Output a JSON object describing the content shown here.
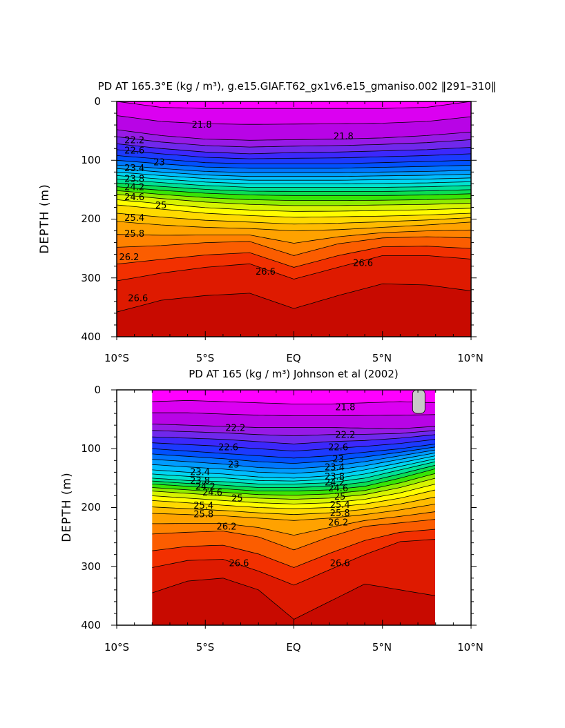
{
  "chart_data": [
    {
      "type": "contour",
      "title": "PD AT 165.3°E (kg / m³), g.e15.GIAF.T62_gx1v6.e15_gmaniso.002 ‖291–310‖",
      "ylabel": "DEPTH (m)",
      "xlabel": "",
      "xticks": [
        "10°S",
        "5°S",
        "EQ",
        "5°N",
        "10°N"
      ],
      "xlim": [
        -10,
        10
      ],
      "ylim": [
        400,
        0
      ],
      "yticks": [
        "0",
        "100",
        "200",
        "300",
        "400"
      ],
      "data_extent": [
        -10,
        10
      ],
      "contour_levels": [
        21.8,
        22.0,
        22.2,
        22.4,
        22.6,
        22.8,
        23.0,
        23.2,
        23.4,
        23.6,
        23.8,
        24.0,
        24.2,
        24.4,
        24.6,
        24.8,
        25.0,
        25.2,
        25.4,
        25.6,
        25.8,
        26.0,
        26.2,
        26.4,
        26.6,
        26.8
      ],
      "isopycnal_depths": [
        {
          "level": 21.8,
          "lat": [
            -10,
            -7.5,
            -5,
            -2.5,
            0,
            2.5,
            5,
            7.5,
            10
          ],
          "depth": [
            0,
            10,
            12,
            12,
            12,
            12,
            12,
            10,
            0
          ]
        },
        {
          "level": 22.2,
          "lat": [
            -10,
            -7.5,
            -5,
            -2.5,
            0,
            2.5,
            5,
            7.5,
            10
          ],
          "depth": [
            48,
            58,
            64,
            66,
            65,
            64,
            62,
            58,
            52
          ]
        },
        {
          "level": 22.6,
          "lat": [
            -10,
            -7.5,
            -5,
            -2.5,
            0,
            2.5,
            5,
            7.5,
            10
          ],
          "depth": [
            72,
            80,
            86,
            89,
            87,
            86,
            84,
            82,
            78
          ]
        },
        {
          "level": 23.0,
          "lat": [
            -10,
            -7.5,
            -5,
            -2.5,
            0,
            2.5,
            5,
            7.5,
            10
          ],
          "depth": [
            92,
            98,
            104,
            106,
            106,
            106,
            104,
            102,
            100
          ]
        },
        {
          "level": 23.4,
          "lat": [
            -10,
            -7.5,
            -5,
            -2.5,
            0,
            2.5,
            5,
            7.5,
            10
          ],
          "depth": [
            108,
            114,
            119,
            121,
            121,
            121,
            120,
            119,
            117
          ]
        },
        {
          "level": 23.8,
          "lat": [
            -10,
            -7.5,
            -5,
            -2.5,
            0,
            2.5,
            5,
            7.5,
            10
          ],
          "depth": [
            120,
            126,
            131,
            134,
            134,
            134,
            133,
            132,
            130
          ]
        },
        {
          "level": 24.2,
          "lat": [
            -10,
            -7.5,
            -5,
            -2.5,
            0,
            2.5,
            5,
            7.5,
            10
          ],
          "depth": [
            132,
            138,
            143,
            146,
            146,
            146,
            146,
            145,
            143
          ]
        },
        {
          "level": 24.6,
          "lat": [
            -10,
            -7.5,
            -5,
            -2.5,
            0,
            2.5,
            5,
            7.5,
            10
          ],
          "depth": [
            145,
            151,
            156,
            159,
            160,
            160,
            160,
            159,
            157
          ]
        },
        {
          "level": 25.0,
          "lat": [
            -10,
            -7.5,
            -5,
            -2.5,
            0,
            2.5,
            5,
            7.5,
            10
          ],
          "depth": [
            158,
            165,
            171,
            175,
            177,
            177,
            176,
            175,
            173
          ]
        },
        {
          "level": 25.4,
          "lat": [
            -10,
            -7.5,
            -5,
            -2.5,
            0,
            2.5,
            5,
            7.5,
            10
          ],
          "depth": [
            176,
            183,
            190,
            194,
            197,
            196,
            195,
            193,
            190
          ]
        },
        {
          "level": 25.8,
          "lat": [
            -10,
            -7.5,
            -5,
            -2.5,
            0,
            2.5,
            5,
            7.5,
            10
          ],
          "depth": [
            204,
            210,
            214,
            216,
            220,
            218,
            214,
            210,
            205
          ]
        },
        {
          "level": 26.2,
          "lat": [
            -10,
            -7.5,
            -5,
            -2.5,
            0,
            2.5,
            5,
            7.5,
            10
          ],
          "depth": [
            248,
            245,
            240,
            238,
            262,
            242,
            232,
            230,
            232
          ]
        },
        {
          "level": 26.6,
          "lat": [
            -10,
            -7.5,
            -5,
            -2.5,
            0,
            2.5,
            5,
            7.5,
            10
          ],
          "depth": [
            305,
            292,
            282,
            276,
            302,
            282,
            262,
            262,
            268
          ]
        },
        {
          "level": 26.8,
          "lat": [
            -10,
            -7.5,
            -5,
            -2.5,
            0,
            2.5,
            5,
            7.5,
            10
          ],
          "depth": [
            358,
            338,
            330,
            326,
            352,
            330,
            310,
            312,
            322
          ]
        }
      ],
      "contour_labels": [
        {
          "text": "21.8",
          "lat": -5.2,
          "depth": 40
        },
        {
          "text": "21.8",
          "lat": 2.8,
          "depth": 60
        },
        {
          "text": "22.2",
          "lat": -9.0,
          "depth": 66
        },
        {
          "text": "22.6",
          "lat": -9.0,
          "depth": 84
        },
        {
          "text": "23",
          "lat": -7.6,
          "depth": 104
        },
        {
          "text": "23.4",
          "lat": -9.0,
          "depth": 114
        },
        {
          "text": "23.8",
          "lat": -9.0,
          "depth": 132
        },
        {
          "text": "24.2",
          "lat": -9.0,
          "depth": 146
        },
        {
          "text": "24.6",
          "lat": -9.0,
          "depth": 163
        },
        {
          "text": "25",
          "lat": -7.5,
          "depth": 177
        },
        {
          "text": "25.4",
          "lat": -9.0,
          "depth": 198
        },
        {
          "text": "25.8",
          "lat": -9.0,
          "depth": 225
        },
        {
          "text": "26.2",
          "lat": -9.3,
          "depth": 265
        },
        {
          "text": "26.6",
          "lat": -8.8,
          "depth": 335
        },
        {
          "text": "26.6",
          "lat": -1.6,
          "depth": 290
        },
        {
          "text": "26.6",
          "lat": 3.9,
          "depth": 275
        }
      ]
    },
    {
      "type": "contour",
      "title": "PD AT 165 (kg / m³) Johnson et al (2002)",
      "ylabel": "DEPTH (m)",
      "xlabel": "",
      "xticks": [
        "10°S",
        "5°S",
        "EQ",
        "5°N",
        "10°N"
      ],
      "xlim": [
        -10,
        10
      ],
      "ylim": [
        400,
        0
      ],
      "yticks": [
        "0",
        "100",
        "200",
        "300",
        "400"
      ],
      "data_extent": [
        -8,
        8
      ],
      "contour_levels": [
        21.8,
        22.0,
        22.2,
        22.4,
        22.6,
        22.8,
        23.0,
        23.2,
        23.4,
        23.6,
        23.8,
        24.0,
        24.2,
        24.4,
        24.6,
        24.8,
        25.0,
        25.2,
        25.4,
        25.6,
        25.8,
        26.0,
        26.2,
        26.4,
        26.6,
        26.8
      ],
      "isopycnal_depths": [
        {
          "level": 21.8,
          "lat": [
            -8,
            -6,
            -4,
            -2,
            0,
            2,
            4,
            6,
            8
          ],
          "depth": [
            20,
            18,
            20,
            22,
            24,
            24,
            22,
            20,
            22
          ]
        },
        {
          "level": 22.2,
          "lat": [
            -8,
            -6,
            -4,
            -2,
            0,
            2,
            4,
            6,
            8
          ],
          "depth": [
            58,
            60,
            62,
            64,
            64,
            64,
            65,
            66,
            62
          ]
        },
        {
          "level": 22.6,
          "lat": [
            -8,
            -6,
            -4,
            -2,
            0,
            2,
            4,
            6,
            8
          ],
          "depth": [
            80,
            82,
            84,
            88,
            92,
            88,
            86,
            82,
            76
          ]
        },
        {
          "level": 23.0,
          "lat": [
            -8,
            -6,
            -4,
            -2,
            0,
            2,
            4,
            6,
            8
          ],
          "depth": [
            100,
            104,
            108,
            112,
            116,
            112,
            106,
            100,
            92
          ]
        },
        {
          "level": 23.4,
          "lat": [
            -8,
            -6,
            -4,
            -2,
            0,
            2,
            4,
            6,
            8
          ],
          "depth": [
            118,
            122,
            126,
            132,
            134,
            130,
            122,
            112,
            102
          ]
        },
        {
          "level": 23.8,
          "lat": [
            -8,
            -6,
            -4,
            -2,
            0,
            2,
            4,
            6,
            8
          ],
          "depth": [
            136,
            140,
            143,
            148,
            150,
            146,
            136,
            124,
            112
          ]
        },
        {
          "level": 24.2,
          "lat": [
            -8,
            -6,
            -4,
            -2,
            0,
            2,
            4,
            6,
            8
          ],
          "depth": [
            150,
            154,
            156,
            160,
            160,
            158,
            150,
            136,
            122
          ]
        },
        {
          "level": 24.6,
          "lat": [
            -8,
            -6,
            -4,
            -2,
            0,
            2,
            4,
            6,
            8
          ],
          "depth": [
            160,
            164,
            168,
            172,
            172,
            170,
            164,
            150,
            134
          ]
        },
        {
          "level": 25.0,
          "lat": [
            -8,
            -6,
            -4,
            -2,
            0,
            2,
            4,
            6,
            8
          ],
          "depth": [
            172,
            176,
            180,
            184,
            186,
            184,
            178,
            166,
            150
          ]
        },
        {
          "level": 25.4,
          "lat": [
            -8,
            -6,
            -4,
            -2,
            0,
            2,
            4,
            6,
            8
          ],
          "depth": [
            188,
            192,
            196,
            200,
            202,
            200,
            194,
            184,
            170
          ]
        },
        {
          "level": 25.8,
          "lat": [
            -8,
            -6,
            -4,
            -2,
            0,
            2,
            4,
            6,
            8
          ],
          "depth": [
            210,
            212,
            214,
            218,
            222,
            218,
            212,
            204,
            194
          ]
        },
        {
          "level": 26.2,
          "lat": [
            -8,
            -6,
            -4,
            -2,
            0,
            2,
            4,
            6,
            8
          ],
          "depth": [
            245,
            242,
            240,
            250,
            272,
            250,
            232,
            226,
            220
          ]
        },
        {
          "level": 26.6,
          "lat": [
            -8,
            -6,
            -4,
            -2,
            0,
            2,
            4,
            6,
            8
          ],
          "depth": [
            302,
            290,
            288,
            308,
            332,
            306,
            280,
            258,
            254
          ]
        },
        {
          "level": 26.8,
          "lat": [
            -8,
            -6,
            -4,
            -2,
            0,
            2,
            4,
            6,
            8
          ],
          "depth": [
            345,
            325,
            320,
            340,
            390,
            360,
            330,
            340,
            350
          ]
        }
      ],
      "contour_labels": [
        {
          "text": "21.8",
          "lat": 2.9,
          "depth": 30
        },
        {
          "text": "22.2",
          "lat": -3.3,
          "depth": 65
        },
        {
          "text": "22.2",
          "lat": 2.9,
          "depth": 77
        },
        {
          "text": "22.6",
          "lat": -3.7,
          "depth": 98
        },
        {
          "text": "22.6",
          "lat": 2.5,
          "depth": 98
        },
        {
          "text": "23",
          "lat": -3.4,
          "depth": 127
        },
        {
          "text": "23",
          "lat": 2.5,
          "depth": 118
        },
        {
          "text": "23.4",
          "lat": -5.3,
          "depth": 140
        },
        {
          "text": "23.4",
          "lat": 2.3,
          "depth": 132
        },
        {
          "text": "23.8",
          "lat": -5.3,
          "depth": 155
        },
        {
          "text": "23.8",
          "lat": 2.3,
          "depth": 148
        },
        {
          "text": "24.2",
          "lat": -5.0,
          "depth": 165
        },
        {
          "text": "24.2",
          "lat": 2.3,
          "depth": 158
        },
        {
          "text": "24.6",
          "lat": -4.6,
          "depth": 175
        },
        {
          "text": "24.6",
          "lat": 2.5,
          "depth": 168
        },
        {
          "text": "25",
          "lat": -3.2,
          "depth": 185
        },
        {
          "text": "25",
          "lat": 2.6,
          "depth": 182
        },
        {
          "text": "25.4",
          "lat": -5.1,
          "depth": 197
        },
        {
          "text": "25.4",
          "lat": 2.6,
          "depth": 196
        },
        {
          "text": "25.8",
          "lat": -5.1,
          "depth": 212
        },
        {
          "text": "25.8",
          "lat": 2.6,
          "depth": 210
        },
        {
          "text": "26.2",
          "lat": -3.8,
          "depth": 233
        },
        {
          "text": "26.2",
          "lat": 2.5,
          "depth": 226
        },
        {
          "text": "26.6",
          "lat": -3.1,
          "depth": 295
        },
        {
          "text": "26.6",
          "lat": 2.6,
          "depth": 295
        }
      ],
      "missing_patches": [
        {
          "lat": [
            6.7,
            7.4
          ],
          "depth": [
            0,
            40
          ]
        }
      ]
    }
  ]
}
